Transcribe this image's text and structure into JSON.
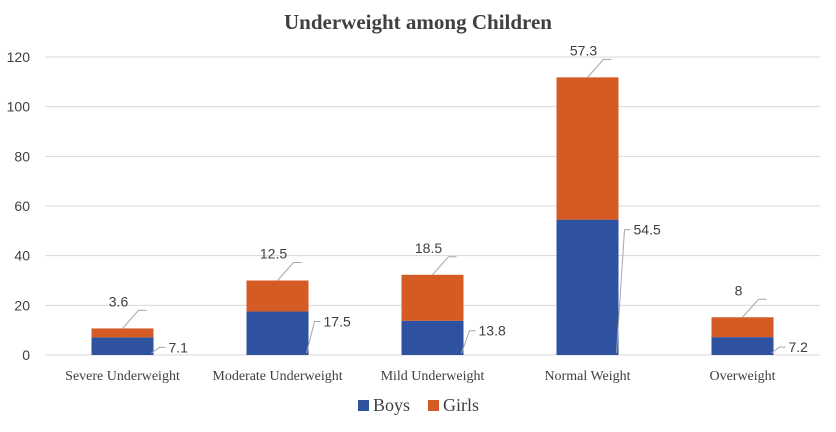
{
  "chart_data": {
    "type": "bar",
    "stacked": true,
    "title": "Underweight among Children",
    "xlabel": "",
    "ylabel": "",
    "categories": [
      "Severe Underweight",
      "Moderate Underweight",
      "Mild Underweight",
      "Normal Weight",
      "Overweight"
    ],
    "series": [
      {
        "name": "Boys",
        "color": "#2f52a0",
        "values": [
          7.1,
          17.5,
          13.8,
          54.5,
          7.2
        ],
        "labels": [
          "7.1",
          "17.5",
          "13.8",
          "54.5",
          "7.2"
        ]
      },
      {
        "name": "Girls",
        "color": "#d45b24",
        "values": [
          3.6,
          12.5,
          18.5,
          57.3,
          8
        ],
        "labels": [
          "3.6",
          "12.5",
          "18.5",
          "57.3",
          "8"
        ]
      }
    ],
    "ylim": [
      0,
      120
    ],
    "yticks": [
      0,
      20,
      40,
      60,
      80,
      100,
      120
    ],
    "grid": true,
    "legend": "bottom"
  }
}
